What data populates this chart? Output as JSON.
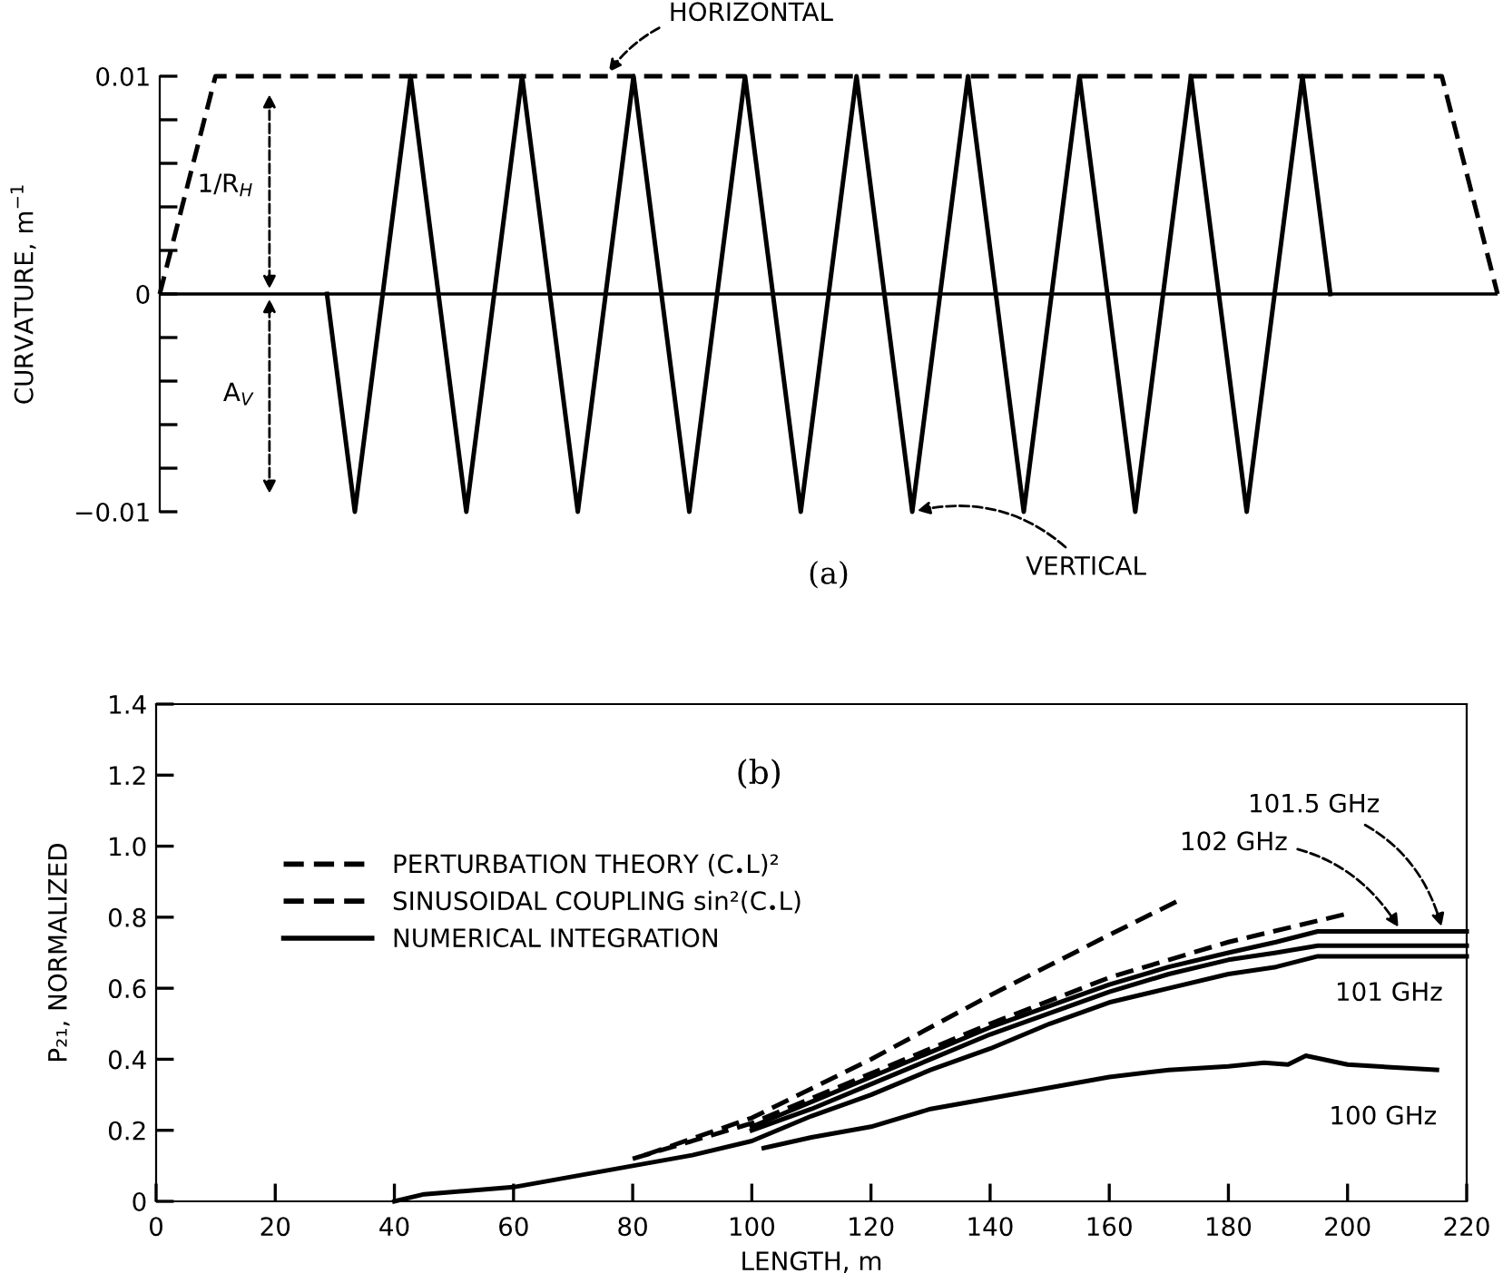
{
  "chart_data": [
    {
      "type": "line",
      "title": "(a)",
      "ylabel": "CURVATURE, m$^{−1}$",
      "ylim": [
        -0.01,
        0.01
      ],
      "categories": [
        null,
        null,
        null,
        null,
        null,
        null,
        null,
        null,
        null,
        null,
        null,
        null,
        null,
        null,
        null,
        null,
        null,
        null,
        null,
        null,
        null,
        null,
        null,
        null,
        null,
        null,
        null,
        null,
        null,
        null,
        null,
        null,
        null,
        null,
        null,
        null,
        null,
        null,
        null,
        null,
        null,
        null,
        null,
        null,
        null,
        null,
        null,
        null,
        null
      ],
      "yticks": [
        {
          "value": -0.01,
          "label": "−0.01"
        },
        {
          "value": -0.008,
          "label": null
        },
        {
          "value": -0.006,
          "label": null
        },
        {
          "value": -0.004,
          "label": null
        },
        {
          "value": -0.002,
          "label": null
        },
        0,
        {
          "value": 0.002,
          "label": null
        },
        {
          "value": 0.004,
          "label": null
        },
        {
          "value": 0.006,
          "label": null
        },
        {
          "value": 0.008,
          "label": null
        },
        0.01
      ],
      "tick_labels": "y",
      "grid": false,
      "ref_lines": [
        {
          "axis": "y",
          "value": 0,
          "color": "#000000"
        }
      ],
      "series": [
        {
          "name": "HORIZONTAL",
          "color": "#000000",
          "line_style": "dashed",
          "values": [
            0,
            0.005,
            0.01,
            0.01,
            0.01,
            0.01,
            0.01,
            0.01,
            0.01,
            0.01,
            0.01,
            0.01,
            0.01,
            0.01,
            0.01,
            0.01,
            0.01,
            0.01,
            0.01,
            0.01,
            0.01,
            0.01,
            0.01,
            0.01,
            0.01,
            0.01,
            0.01,
            0.01,
            0.01,
            0.01,
            0.01,
            0.01,
            0.01,
            0.01,
            0.01,
            0.01,
            0.01,
            0.01,
            0.01,
            0.01,
            0.01,
            0.01,
            0.01,
            0.01,
            0.01,
            0.01,
            0.01,
            0.005,
            0
          ]
        },
        {
          "name": "VERTICAL",
          "color": "#000000",
          "line_style": "solid",
          "values": [
            null,
            null,
            null,
            null,
            null,
            null,
            0,
            -0.01,
            0,
            0.01,
            0,
            -0.01,
            0,
            0.01,
            0,
            -0.01,
            0,
            0.01,
            0,
            -0.01,
            0,
            0.01,
            0,
            -0.01,
            0,
            0.01,
            0,
            -0.01,
            0,
            0.01,
            0,
            -0.01,
            0,
            0.01,
            0,
            -0.01,
            0,
            0.01,
            0,
            -0.01,
            0,
            0.01,
            0,
            null,
            null,
            null,
            null,
            null,
            null
          ]
        }
      ],
      "annotations": [
        "1/R$_{H}$",
        "A$_{V}$"
      ]
    },
    {
      "type": "line",
      "title": "(b)",
      "xlabel": "LENGTH, m",
      "ylabel": "P₂₁, NORMALIZED",
      "xlim": [
        0,
        220
      ],
      "ylim": [
        0,
        1.4
      ],
      "xticks": [
        0,
        20,
        40,
        60,
        80,
        100,
        120,
        140,
        160,
        180,
        200,
        220
      ],
      "yticks": [
        0,
        0.2,
        0.4,
        0.6,
        0.8,
        {
          "value": 1.0,
          "label": "1.0"
        },
        1.2,
        1.4
      ],
      "grid": false,
      "legend": "left",
      "series": [
        {
          "name": "PERTURBATION THEORY (C$_{•}$L)²",
          "color": "#000000",
          "line_style": "dashed",
          "x": [
            82,
            100,
            120,
            140,
            160,
            172
          ],
          "values": [
            0.13,
            0.235,
            0.4,
            0.58,
            0.75,
            0.85
          ]
        },
        {
          "name": "SINUSOIDAL COUPLING sin²(C$_{•}$L)",
          "color": "#000000",
          "line_style": "dashed",
          "x": [
            80,
            100,
            120,
            140,
            160,
            180,
            200
          ],
          "values": [
            0.12,
            0.22,
            0.36,
            0.5,
            0.63,
            0.73,
            0.81
          ]
        },
        {
          "name": "NUMERICAL INTEGRATION",
          "color": "#000000",
          "line_style": "solid",
          "x": [
            40,
            45,
            60,
            70,
            80,
            90,
            100,
            110,
            120,
            130,
            140,
            150,
            160,
            170,
            180,
            188,
            195,
            220
          ],
          "values": [
            0,
            0.02,
            0.04,
            0.07,
            0.1,
            0.13,
            0.17,
            0.24,
            0.3,
            0.37,
            0.43,
            0.5,
            0.56,
            0.6,
            0.64,
            0.66,
            0.69,
            0.69
          ]
        },
        {
          "color": "#000000",
          "line_style": "solid",
          "x": [
            100,
            110,
            120,
            130,
            140,
            150,
            160,
            170,
            180,
            188,
            195,
            220
          ],
          "values": [
            0.21,
            0.28,
            0.35,
            0.42,
            0.49,
            0.55,
            0.61,
            0.66,
            0.7,
            0.73,
            0.76,
            0.76
          ]
        },
        {
          "color": "#000000",
          "line_style": "solid",
          "x": [
            100,
            110,
            120,
            130,
            140,
            150,
            160,
            170,
            180,
            188,
            195,
            220
          ],
          "values": [
            0.2,
            0.26,
            0.33,
            0.4,
            0.47,
            0.53,
            0.59,
            0.64,
            0.68,
            0.7,
            0.72,
            0.72
          ]
        },
        {
          "color": "#000000",
          "line_style": "solid",
          "x": [
            102,
            110,
            120,
            130,
            140,
            150,
            160,
            170,
            180,
            186,
            190,
            193,
            200,
            215
          ],
          "values": [
            0.15,
            0.18,
            0.21,
            0.26,
            0.29,
            0.32,
            0.35,
            0.37,
            0.38,
            0.39,
            0.385,
            0.41,
            0.385,
            0.37
          ]
        }
      ],
      "annotations": [
        {
          "text": "101.5 GHz",
          "x": 216,
          "y": 0.76
        },
        {
          "text": "102 GHz",
          "x": 209,
          "y": 0.76
        },
        {
          "text": "101 GHz",
          "x": 216,
          "y": 0.69
        },
        {
          "text": "100 GHz",
          "x": 215,
          "y": 0.37
        }
      ]
    }
  ]
}
